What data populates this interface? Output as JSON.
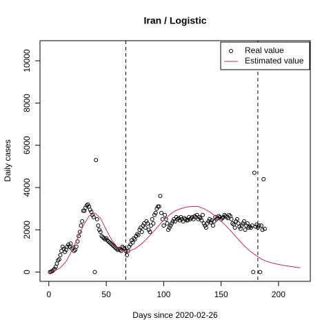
{
  "chart_data": {
    "type": "scatter",
    "title": "Iran / Logistic",
    "xlabel": "Days since 2020-02-26",
    "ylabel": "Daily cases",
    "xlim": [
      -7.7,
      227.7
    ],
    "ylim": [
      -440,
      10950
    ],
    "xticks": [
      0,
      50,
      100,
      150,
      200
    ],
    "yticks": [
      0,
      2000,
      4000,
      6000,
      8000,
      10000
    ],
    "vlines": [
      67,
      182
    ],
    "legend": "top-right",
    "series": [
      {
        "name": "Real value",
        "style": "points",
        "color": "#000000",
        "x": [
          1,
          2,
          3,
          4,
          5,
          6,
          7,
          8,
          9,
          10,
          11,
          12,
          13,
          14,
          15,
          16,
          17,
          18,
          19,
          20,
          21,
          22,
          23,
          24,
          25,
          26,
          27,
          28,
          29,
          30,
          31,
          32,
          33,
          34,
          35,
          36,
          37,
          38,
          39,
          40,
          41,
          42,
          43,
          44,
          45,
          46,
          47,
          48,
          49,
          50,
          51,
          52,
          53,
          54,
          55,
          56,
          57,
          58,
          59,
          60,
          61,
          62,
          63,
          64,
          65,
          66,
          67,
          68,
          69,
          70,
          71,
          72,
          73,
          74,
          75,
          76,
          77,
          78,
          79,
          80,
          81,
          82,
          83,
          84,
          85,
          86,
          87,
          88,
          89,
          90,
          91,
          92,
          93,
          94,
          95,
          96,
          97,
          98,
          99,
          100,
          101,
          102,
          103,
          104,
          105,
          106,
          107,
          108,
          109,
          110,
          111,
          112,
          113,
          114,
          115,
          116,
          117,
          118,
          119,
          120,
          121,
          122,
          123,
          124,
          125,
          126,
          127,
          128,
          129,
          130,
          131,
          132,
          133,
          134,
          135,
          136,
          137,
          138,
          139,
          140,
          141,
          142,
          143,
          144,
          145,
          146,
          147,
          148,
          149,
          150,
          151,
          152,
          153,
          154,
          155,
          156,
          157,
          158,
          159,
          160,
          161,
          162,
          163,
          164,
          165,
          166,
          167,
          168,
          169,
          170,
          171,
          172,
          173,
          174,
          175,
          176,
          177,
          178,
          179,
          180,
          181,
          182,
          183,
          184,
          185,
          186,
          187,
          188
        ],
        "values": [
          0,
          20,
          50,
          100,
          150,
          250,
          400,
          550,
          600,
          800,
          1000,
          1200,
          1100,
          950,
          1050,
          1200,
          1300,
          1200,
          1350,
          1100,
          1150,
          1000,
          1050,
          1200,
          1450,
          1700,
          1900,
          2200,
          2400,
          2900,
          2900,
          3050,
          3150,
          3200,
          3100,
          2950,
          2850,
          2700,
          2600,
          0,
          5300,
          2500,
          2200,
          2000,
          1900,
          1700,
          1650,
          1600,
          1550,
          1600,
          1500,
          1450,
          1400,
          1350,
          1300,
          1250,
          1200,
          1150,
          1100,
          1050,
          1100,
          1050,
          1000,
          1200,
          1150,
          1100,
          1000,
          800,
          1000,
          1200,
          1300,
          1500,
          1400,
          1600,
          1550,
          1700,
          1800,
          1750,
          2000,
          2100,
          1900,
          2200,
          2300,
          2100,
          2400,
          2300,
          2000,
          1900,
          2200,
          2500,
          2300,
          2700,
          2800,
          3000,
          3100,
          3100,
          3600,
          2800,
          2500,
          2200,
          2700,
          2500,
          2300,
          2000,
          2100,
          2200,
          2300,
          2400,
          2500,
          2400,
          2600,
          2500,
          2550,
          2450,
          2600,
          2500,
          2400,
          2550,
          2500,
          2450,
          2450,
          2600,
          2500,
          2550,
          2600,
          2500,
          2650,
          2600,
          2700,
          2500,
          2600,
          2550,
          2450,
          2700,
          2300,
          2200,
          2100,
          2300,
          2400,
          2500,
          2350,
          2450,
          2200,
          2400,
          2600,
          2500,
          2550,
          2650,
          2600,
          2500,
          2550,
          2600,
          2700,
          2650,
          2600,
          2550,
          2700,
          2650,
          2500,
          2300,
          2250,
          2100,
          2400,
          2500,
          2300,
          2150,
          2050,
          2200,
          2300,
          2400,
          2000,
          2200,
          2300,
          2100,
          2150,
          2100,
          2200,
          0,
          4700,
          2150,
          2250,
          2100,
          2200,
          0,
          2200,
          2000,
          4400,
          2050
        ]
      },
      {
        "name": "Estimated value",
        "style": "line",
        "color": "#cd2a5a",
        "x": [
          1,
          5,
          10,
          15,
          20,
          25,
          30,
          35,
          40,
          45,
          50,
          55,
          60,
          65,
          70,
          75,
          80,
          85,
          90,
          95,
          100,
          105,
          110,
          115,
          120,
          125,
          130,
          135,
          140,
          145,
          150,
          155,
          160,
          165,
          170,
          175,
          180,
          185,
          190,
          195,
          200,
          205,
          210,
          215,
          219
        ],
        "values": [
          20,
          60,
          200,
          500,
          1000,
          1600,
          2200,
          2650,
          2800,
          2550,
          2000,
          1500,
          1150,
          1000,
          1000,
          1100,
          1300,
          1550,
          1850,
          2150,
          2450,
          2700,
          2900,
          3000,
          3080,
          3100,
          3100,
          3000,
          2850,
          2650,
          2400,
          2150,
          1850,
          1550,
          1250,
          1000,
          800,
          620,
          500,
          420,
          360,
          310,
          270,
          230,
          200
        ]
      }
    ]
  }
}
